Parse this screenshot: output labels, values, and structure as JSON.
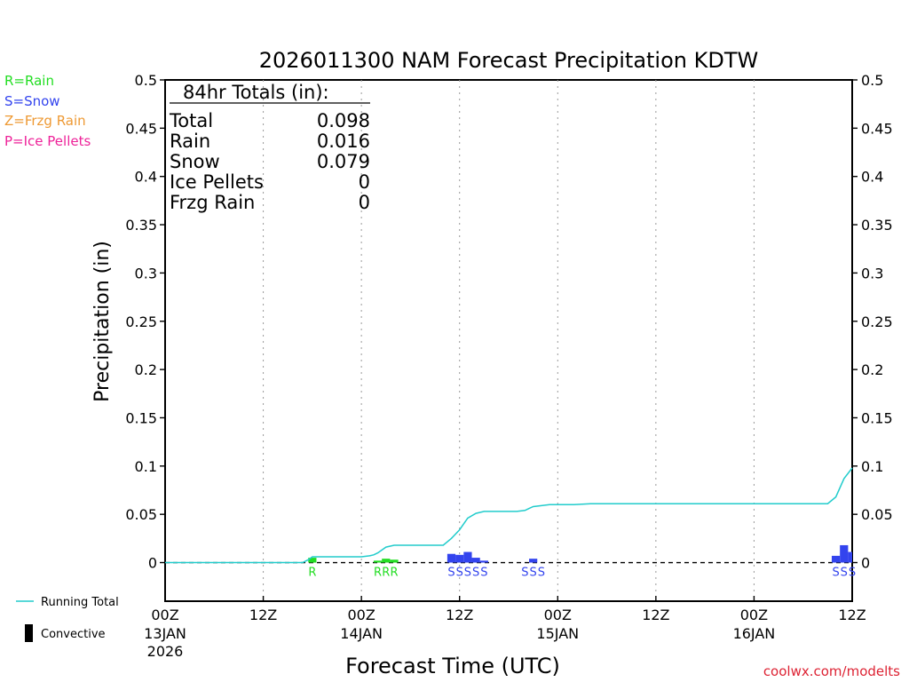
{
  "chart_data": {
    "type": "bar",
    "title": "2026011300 NAM Forecast Precipitation KDTW",
    "xlabel": "Forecast Time (UTC)",
    "ylabel": "Precipitation (in)",
    "ylim": [
      -0.04,
      0.5
    ],
    "xlim_hours": [
      0,
      84
    ],
    "y_ticks": [
      0,
      0.05,
      0.1,
      0.15,
      0.2,
      0.25,
      0.3,
      0.35,
      0.4,
      0.45,
      0.5
    ],
    "y_tick_labels": [
      "0",
      "0.05",
      "0.1",
      "0.15",
      "0.2",
      "0.25",
      "0.3",
      "0.35",
      "0.4",
      "0.45",
      "0.5"
    ],
    "x_ticks": [
      {
        "hour": 0,
        "label": "00Z",
        "date": "13JAN",
        "year": "2026"
      },
      {
        "hour": 12,
        "label": "12Z",
        "date": "",
        "year": ""
      },
      {
        "hour": 24,
        "label": "00Z",
        "date": "14JAN",
        "year": ""
      },
      {
        "hour": 36,
        "label": "12Z",
        "date": "",
        "year": ""
      },
      {
        "hour": 48,
        "label": "00Z",
        "date": "15JAN",
        "year": ""
      },
      {
        "hour": 60,
        "label": "12Z",
        "date": "",
        "year": ""
      },
      {
        "hour": 72,
        "label": "00Z",
        "date": "16JAN",
        "year": ""
      },
      {
        "hour": 84,
        "label": "12Z",
        "date": "",
        "year": ""
      }
    ],
    "legend": {
      "type_codes": [
        {
          "text": "R=Rain",
          "color": "#22dd22"
        },
        {
          "text": "S=Snow",
          "color": "#3344ee"
        },
        {
          "text": "Z=Frzg Rain",
          "color": "#ee9933"
        },
        {
          "text": "P=Ice Pellets",
          "color": "#ee2299"
        }
      ],
      "running_total": {
        "label": "Running Total",
        "color": "#22cccc"
      },
      "convective": {
        "label": "Convective",
        "color": "#000000"
      }
    },
    "totals": {
      "heading": "84hr Totals (in):",
      "rows": [
        {
          "label": "Total",
          "value": "0.098"
        },
        {
          "label": "Rain",
          "value": "0.016"
        },
        {
          "label": "Snow",
          "value": "0.079"
        },
        {
          "label": "Ice Pellets",
          "value": "0"
        },
        {
          "label": "Frzg Rain",
          "value": "0"
        }
      ]
    },
    "series": [
      {
        "name": "Hourly Precipitation",
        "bars": [
          {
            "hour": 18,
            "value": 0.005,
            "type": "rain"
          },
          {
            "hour": 26,
            "value": 0.002,
            "type": "rain"
          },
          {
            "hour": 27,
            "value": 0.004,
            "type": "rain"
          },
          {
            "hour": 28,
            "value": 0.003,
            "type": "rain"
          },
          {
            "hour": 35,
            "value": 0.009,
            "type": "snow"
          },
          {
            "hour": 36,
            "value": 0.008,
            "type": "snow"
          },
          {
            "hour": 37,
            "value": 0.011,
            "type": "snow"
          },
          {
            "hour": 38,
            "value": 0.005,
            "type": "snow"
          },
          {
            "hour": 39,
            "value": 0.002,
            "type": "snow"
          },
          {
            "hour": 45,
            "value": 0.004,
            "type": "snow"
          },
          {
            "hour": 82,
            "value": 0.007,
            "type": "snow"
          },
          {
            "hour": 83,
            "value": 0.018,
            "type": "snow"
          },
          {
            "hour": 84,
            "value": 0.011,
            "type": "snow"
          }
        ]
      },
      {
        "name": "Running Total",
        "x": [
          0,
          16.8,
          17.5,
          18,
          19,
          20,
          21,
          22,
          23,
          24,
          25,
          25.5,
          26,
          26.5,
          27,
          28,
          29,
          30,
          31,
          32,
          33,
          34,
          35,
          36,
          37,
          38,
          39,
          40,
          41,
          42,
          43,
          44,
          44.5,
          45,
          46,
          47,
          48,
          50,
          52,
          54,
          56,
          58,
          60,
          62,
          64,
          66,
          68,
          70,
          72,
          74,
          76,
          78,
          79,
          80,
          81,
          82,
          83,
          84
        ],
        "values": [
          0,
          0,
          0.003,
          0.006,
          0.006,
          0.006,
          0.006,
          0.006,
          0.006,
          0.006,
          0.007,
          0.008,
          0.01,
          0.013,
          0.016,
          0.018,
          0.018,
          0.018,
          0.018,
          0.018,
          0.018,
          0.018,
          0.025,
          0.034,
          0.046,
          0.051,
          0.053,
          0.053,
          0.053,
          0.053,
          0.053,
          0.054,
          0.056,
          0.058,
          0.059,
          0.06,
          0.06,
          0.06,
          0.061,
          0.061,
          0.061,
          0.061,
          0.061,
          0.061,
          0.061,
          0.061,
          0.061,
          0.061,
          0.061,
          0.061,
          0.061,
          0.061,
          0.061,
          0.061,
          0.061,
          0.068,
          0.087,
          0.098
        ]
      }
    ],
    "type_markers": [
      {
        "hour": 18,
        "text": "R",
        "type": "rain"
      },
      {
        "hour": 26,
        "text": "R",
        "type": "rain"
      },
      {
        "hour": 27,
        "text": "R",
        "type": "rain"
      },
      {
        "hour": 28,
        "text": "R",
        "type": "rain"
      },
      {
        "hour": 35,
        "text": "S",
        "type": "snow"
      },
      {
        "hour": 36,
        "text": "S",
        "type": "snow"
      },
      {
        "hour": 37,
        "text": "S",
        "type": "snow"
      },
      {
        "hour": 38,
        "text": "S",
        "type": "snow"
      },
      {
        "hour": 39,
        "text": "S",
        "type": "snow"
      },
      {
        "hour": 44,
        "text": "S",
        "type": "snow"
      },
      {
        "hour": 45,
        "text": "S",
        "type": "snow"
      },
      {
        "hour": 46,
        "text": "S",
        "type": "snow"
      },
      {
        "hour": 82,
        "text": "S",
        "type": "snow"
      },
      {
        "hour": 83,
        "text": "S",
        "type": "snow"
      },
      {
        "hour": 84,
        "text": "S",
        "type": "snow"
      }
    ],
    "type_colors": {
      "rain": "#22dd22",
      "snow": "#3344ee",
      "frzg": "#ee9933",
      "pellets": "#ee2299"
    }
  },
  "credit": "coolwx.com/modelts",
  "credit_color": "#dd2233"
}
